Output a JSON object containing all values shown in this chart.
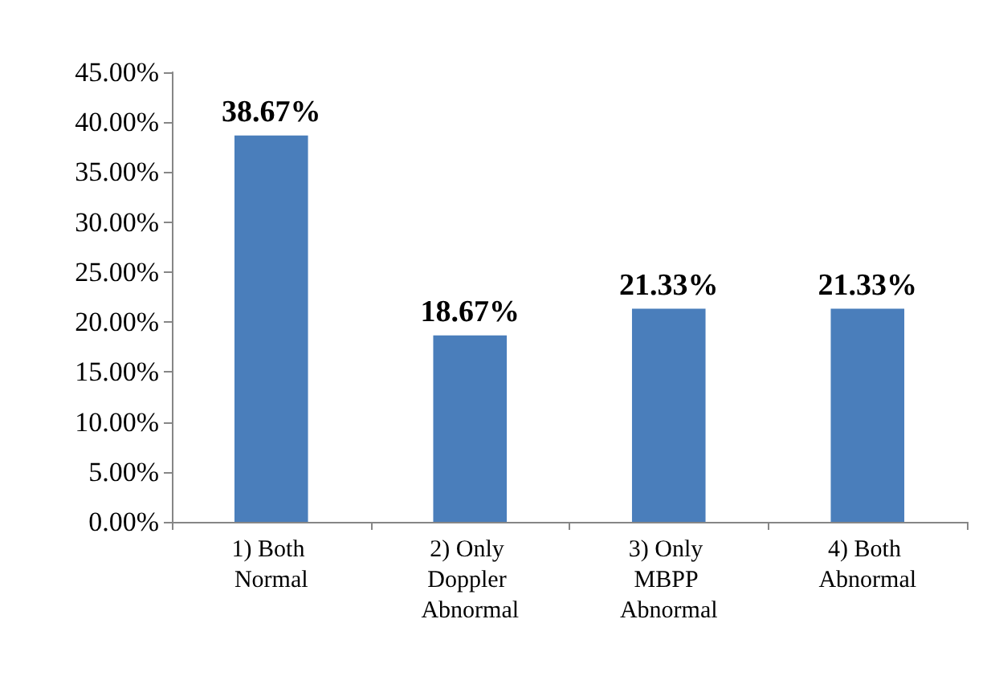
{
  "chart_data": {
    "type": "bar",
    "categories": [
      "1) Both Normal",
      "2) Only Doppler Abnormal",
      "3) Only MBPP Abnormal",
      "4) Both Abnormal"
    ],
    "values": [
      38.67,
      18.67,
      21.33,
      21.33
    ],
    "value_labels": [
      "38.67%",
      "18.67%",
      "21.33%",
      "21.33%"
    ],
    "color": "#4a7ebb",
    "ylim": [
      0,
      45
    ],
    "yticks": [
      {
        "value": 0,
        "label": "0.00%"
      },
      {
        "value": 5,
        "label": "5.00%"
      },
      {
        "value": 10,
        "label": "10.00%"
      },
      {
        "value": 15,
        "label": "15.00%"
      },
      {
        "value": 20,
        "label": "20.00%"
      },
      {
        "value": 25,
        "label": "25.00%"
      },
      {
        "value": 30,
        "label": "30.00%"
      },
      {
        "value": 35,
        "label": "35.00%"
      },
      {
        "value": 40,
        "label": "40.00%"
      },
      {
        "value": 45,
        "label": "45.00%"
      }
    ],
    "grid": false
  }
}
